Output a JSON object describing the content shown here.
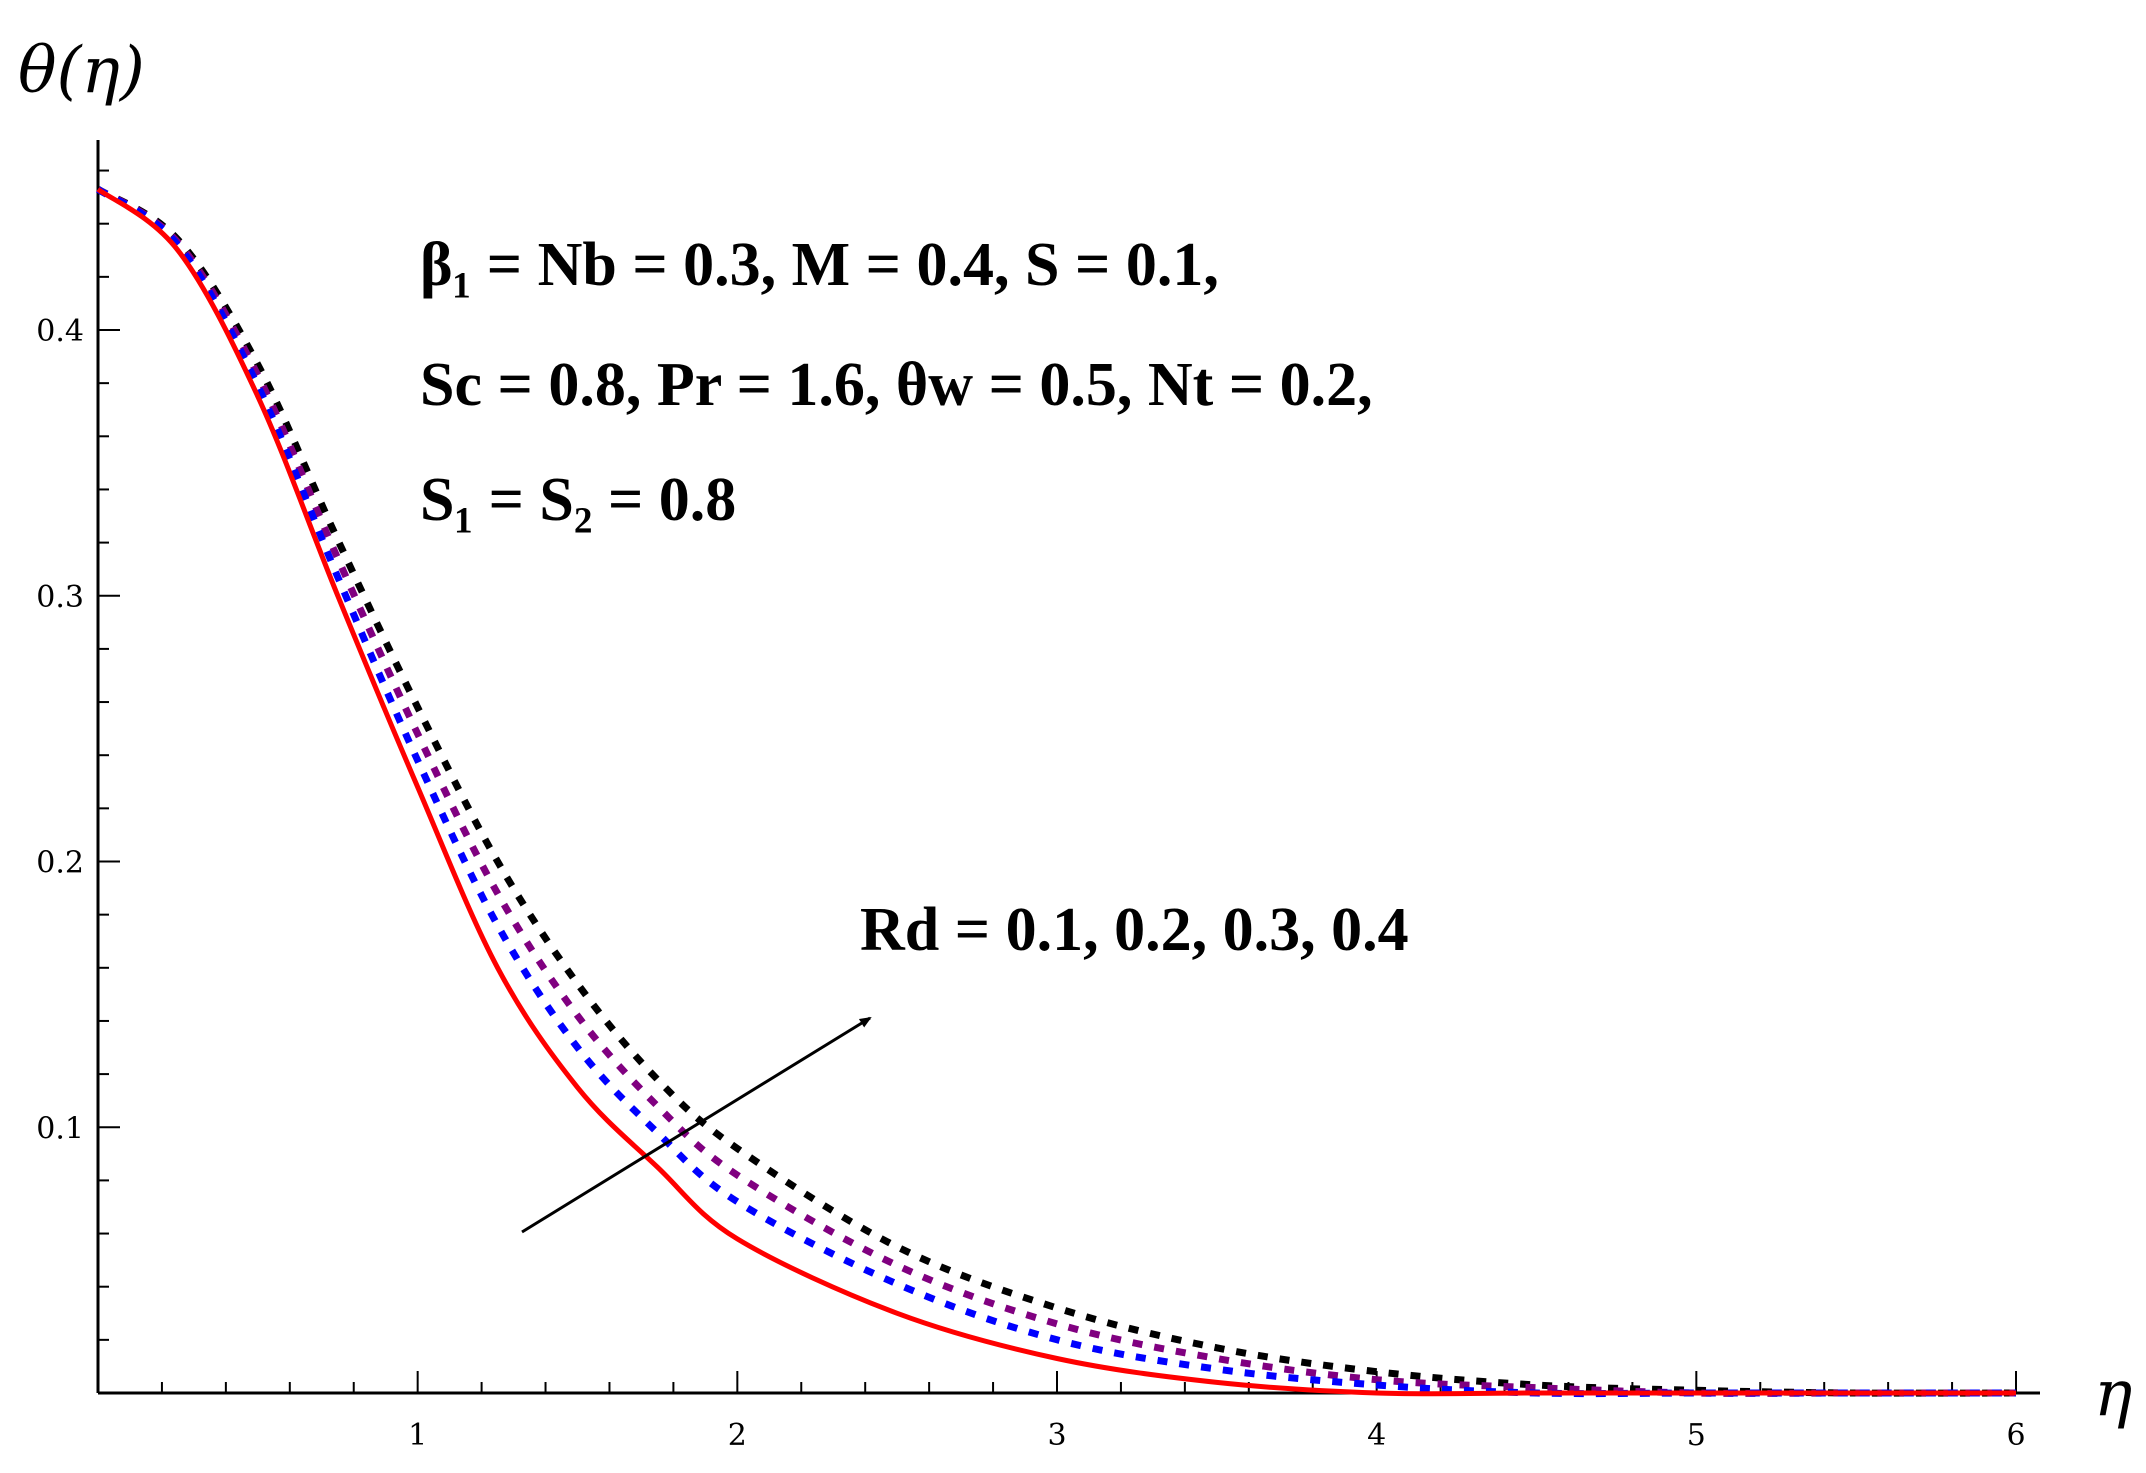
{
  "chart_data": {
    "type": "line",
    "xlabel": "η",
    "ylabel": "θ(η)",
    "xlim": [
      0,
      6
    ],
    "ylim": [
      0,
      0.46
    ],
    "x_ticks": [
      1,
      2,
      3,
      4,
      5,
      6
    ],
    "y_ticks": [
      0.1,
      0.2,
      0.3,
      0.4
    ],
    "x_tick_labels": [
      "1",
      "2",
      "3",
      "4",
      "5",
      "6"
    ],
    "y_tick_labels": [
      "0.1",
      "0.2",
      "0.3",
      "0.4"
    ],
    "grid": false,
    "legend": null,
    "series": [
      {
        "color": "#ff0000",
        "style": "solid",
        "x": [
          0,
          0.25,
          0.5,
          0.75,
          1.0,
          1.25,
          1.5,
          1.75,
          2.0,
          2.5,
          3.0,
          3.5,
          4.0,
          4.5,
          5.0,
          5.5,
          6.0
        ],
        "y": [
          0.453,
          0.43,
          0.375,
          0.3,
          0.228,
          0.16,
          0.115,
          0.085,
          0.058,
          0.03,
          0.013,
          0.004,
          0.0,
          0.0,
          0.0,
          0.0,
          0.0
        ]
      },
      {
        "color": "#0000ff",
        "style": "dashed",
        "x": [
          0,
          0.25,
          0.5,
          0.75,
          1.0,
          1.25,
          1.5,
          1.75,
          2.0,
          2.5,
          3.0,
          3.5,
          4.0,
          4.5,
          5.0,
          5.5,
          6.0
        ],
        "y": [
          0.453,
          0.432,
          0.379,
          0.307,
          0.238,
          0.176,
          0.13,
          0.098,
          0.072,
          0.041,
          0.02,
          0.009,
          0.003,
          0.0,
          0.0,
          0.0,
          0.0
        ]
      },
      {
        "color": "#800080",
        "style": "dashed",
        "x": [
          0,
          0.25,
          0.5,
          0.75,
          1.0,
          1.25,
          1.5,
          1.75,
          2.0,
          2.5,
          3.0,
          3.5,
          4.0,
          4.5,
          5.0,
          5.5,
          6.0
        ],
        "y": [
          0.453,
          0.433,
          0.383,
          0.314,
          0.248,
          0.188,
          0.142,
          0.108,
          0.082,
          0.048,
          0.026,
          0.013,
          0.005,
          0.002,
          0.0,
          0.0,
          0.0
        ]
      },
      {
        "color": "#000000",
        "style": "dashed",
        "x": [
          0,
          0.25,
          0.5,
          0.75,
          1.0,
          1.25,
          1.5,
          1.75,
          2.0,
          2.5,
          3.0,
          3.5,
          4.0,
          4.5,
          5.0,
          5.5,
          6.0
        ],
        "y": [
          0.453,
          0.434,
          0.387,
          0.321,
          0.258,
          0.2,
          0.154,
          0.118,
          0.092,
          0.055,
          0.032,
          0.017,
          0.008,
          0.003,
          0.001,
          0.0,
          0.0
        ]
      }
    ],
    "annotations": {
      "params_line1": "β₁ = Nb = 0.3,  M = 0.4,  S = 0.1,",
      "params_line2": "Sc = 0.8, Pr = 1.6,  θw = 0.5,  Nt = 0.2,",
      "params_line3": "S₁ = S₂ = 0.8",
      "rd_label": "Rd = 0.1, 0.2, 0.3, 0.4"
    }
  }
}
